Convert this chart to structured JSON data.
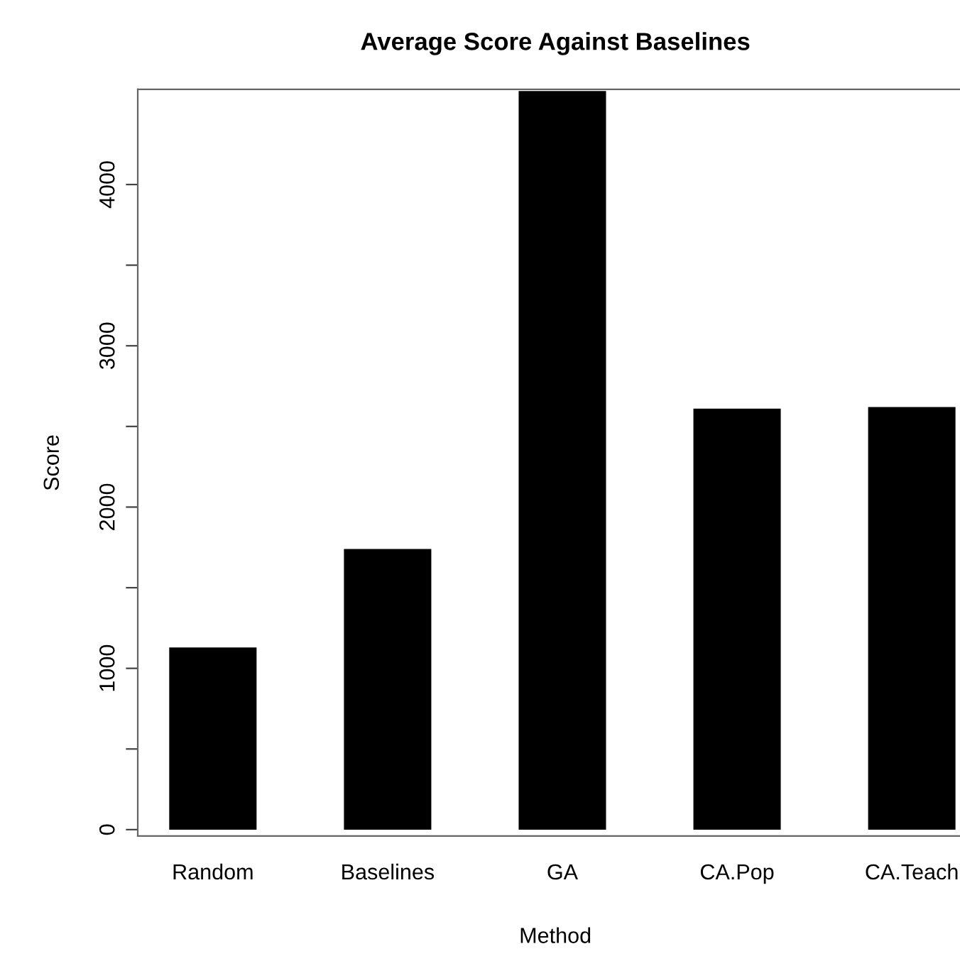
{
  "chart_data": {
    "type": "bar",
    "title": "Average Score Against Baselines",
    "xlabel": "Method",
    "ylabel": "Score",
    "categories": [
      "Random",
      "Baselines",
      "GA",
      "CA.Pop",
      "CA.Teach"
    ],
    "values": [
      1130,
      1740,
      4580,
      2610,
      2620
    ],
    "color": "#000000",
    "ylim": [
      -40,
      4590
    ],
    "yticks": [
      0,
      {
        "value": 500,
        "label": null
      },
      1000,
      {
        "value": 1500,
        "label": null
      },
      2000,
      {
        "value": 2500,
        "label": null
      },
      3000,
      {
        "value": 3500,
        "label": null
      },
      4000
    ],
    "grid": false
  }
}
